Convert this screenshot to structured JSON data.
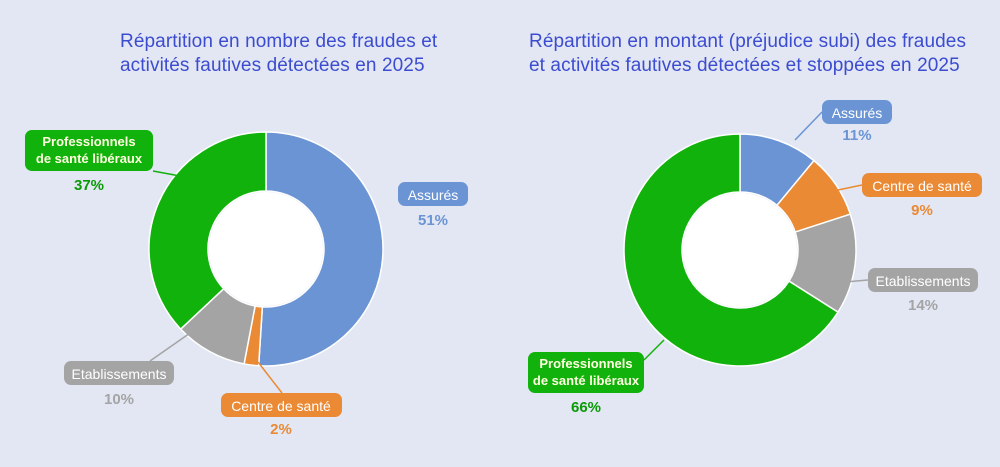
{
  "colors": {
    "assures": "#6a94d4",
    "centre": "#ea8a35",
    "etablissements": "#a4a4a4",
    "professionnels": "#12b20c",
    "title": "#3c4cd0",
    "background": "#e2e7f3"
  },
  "chart_data": [
    {
      "type": "pie",
      "title_lines": [
        "Répartition en nombre des fraudes et",
        "activités fautives détectées en 2025"
      ],
      "slices": [
        {
          "label": "Assurés",
          "value": 51,
          "value_label": "51%"
        },
        {
          "label": "Centre de santé",
          "value": 2,
          "value_label": "2%"
        },
        {
          "label": "Etablissements",
          "value": 10,
          "value_label": "10%"
        },
        {
          "label_lines": [
            "Professionnels",
            "de santé libéraux"
          ],
          "value": 37,
          "value_label": "37%"
        }
      ]
    },
    {
      "type": "pie",
      "title_lines": [
        "Répartition en montant (préjudice subi) des fraudes",
        "et activités fautives détectées et stoppées en 2025"
      ],
      "slices": [
        {
          "label": "Assurés",
          "value": 11,
          "value_label": "11%"
        },
        {
          "label": "Centre de santé",
          "value": 9,
          "value_label": "9%"
        },
        {
          "label": "Etablissements",
          "value": 14,
          "value_label": "14%"
        },
        {
          "label_lines": [
            "Professionnels",
            "de santé libéraux"
          ],
          "value": 66,
          "value_label": "66%"
        }
      ]
    }
  ]
}
